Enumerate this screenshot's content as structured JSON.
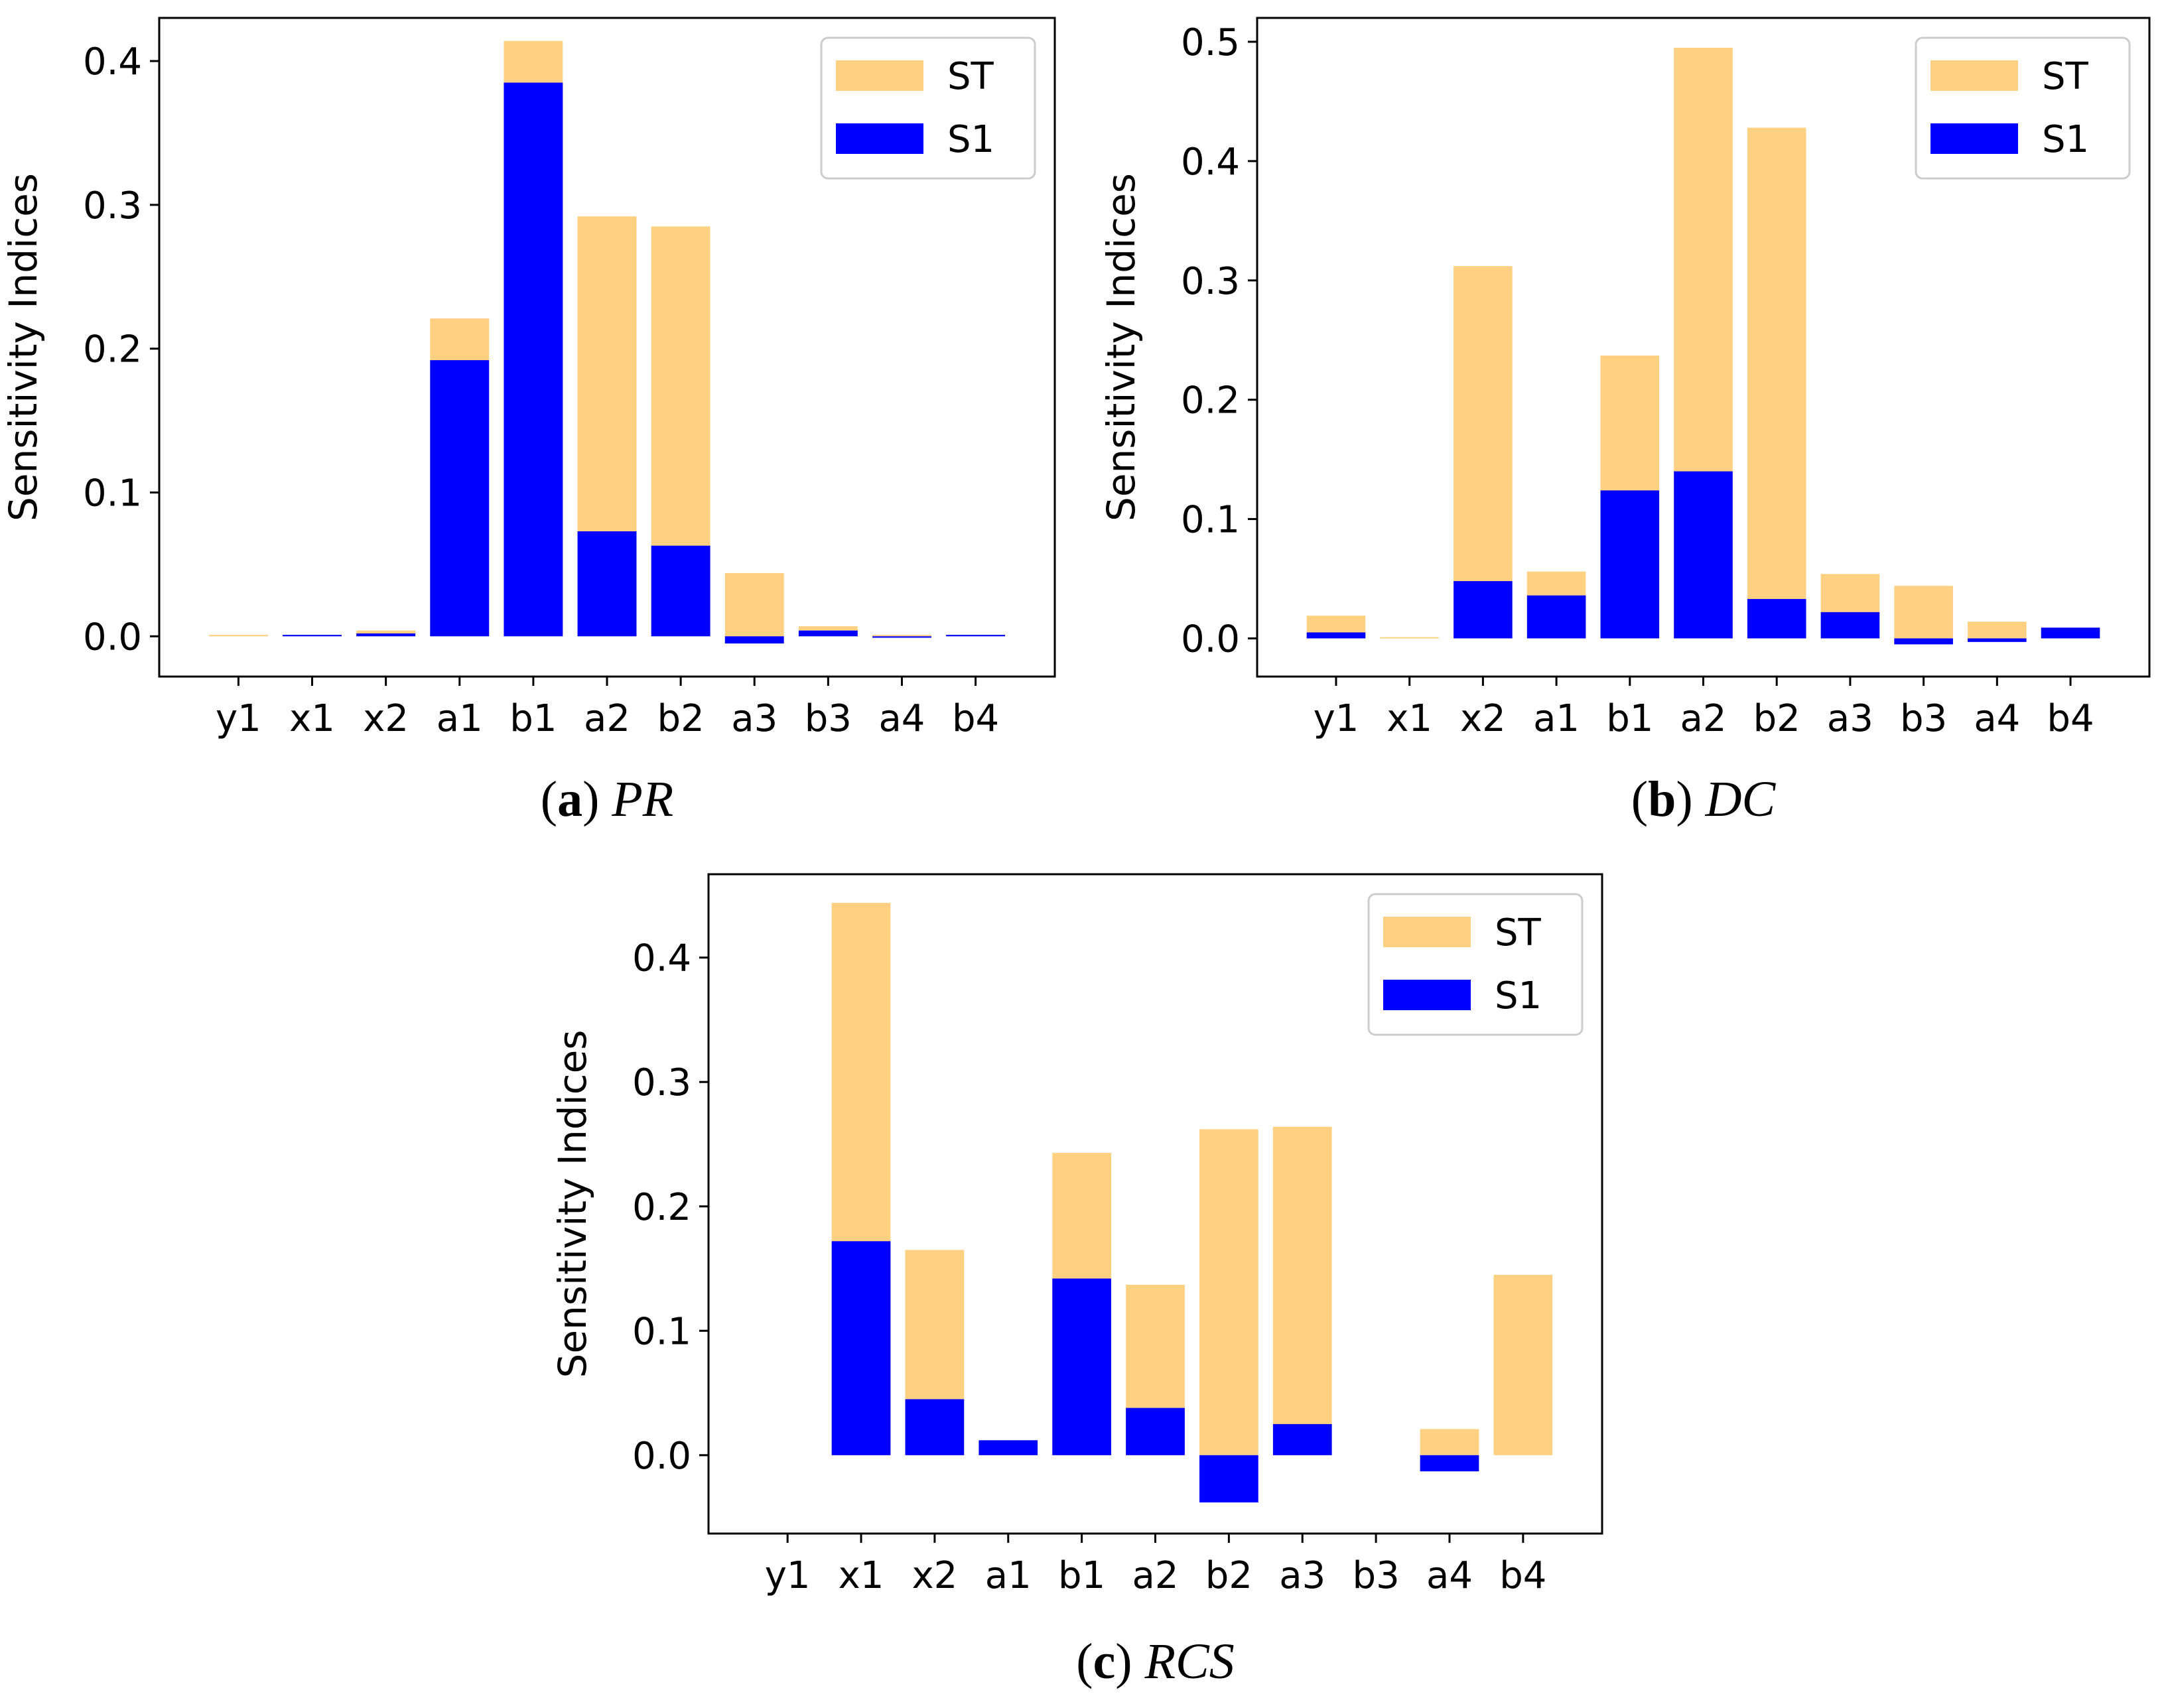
{
  "colors": {
    "ST": "#fed082",
    "S1": "#0000ff"
  },
  "chart_data": [
    {
      "type": "bar",
      "caption_letter": "a",
      "caption_name": "PR",
      "ylabel": "Sensitivity Indices",
      "categories": [
        "y1",
        "x1",
        "x2",
        "a1",
        "b1",
        "a2",
        "b2",
        "a3",
        "b3",
        "a4",
        "b4"
      ],
      "ylim": [
        -0.028,
        0.43
      ],
      "yticks": [
        0.0,
        0.1,
        0.2,
        0.3,
        0.4
      ],
      "ytick_labels": [
        "0.0",
        "0.1",
        "0.2",
        "0.3",
        "0.4"
      ],
      "grid": false,
      "legend_position": "top-right",
      "series": [
        {
          "name": "ST",
          "values": [
            0.001,
            0.001,
            0.004,
            0.221,
            0.414,
            0.292,
            0.285,
            0.044,
            0.007,
            0.001,
            0.001
          ]
        },
        {
          "name": "S1",
          "values": [
            0.0,
            0.001,
            0.002,
            0.192,
            0.385,
            0.073,
            0.063,
            -0.005,
            0.004,
            -0.001,
            0.001
          ]
        }
      ]
    },
    {
      "type": "bar",
      "caption_letter": "b",
      "caption_name": "DC",
      "ylabel": "Sensitivity Indices",
      "categories": [
        "y1",
        "x1",
        "x2",
        "a1",
        "b1",
        "a2",
        "b2",
        "a3",
        "b3",
        "a4",
        "b4"
      ],
      "ylim": [
        -0.032,
        0.52
      ],
      "yticks": [
        0.0,
        0.1,
        0.2,
        0.3,
        0.4,
        0.5
      ],
      "ytick_labels": [
        "0.0",
        "0.1",
        "0.2",
        "0.3",
        "0.4",
        "0.5"
      ],
      "grid": false,
      "legend_position": "top-right",
      "series": [
        {
          "name": "ST",
          "values": [
            0.019,
            0.001,
            0.312,
            0.056,
            0.237,
            0.495,
            0.428,
            0.054,
            0.044,
            0.014,
            0.009
          ]
        },
        {
          "name": "S1",
          "values": [
            0.005,
            0.0,
            0.048,
            0.036,
            0.124,
            0.14,
            0.033,
            0.022,
            -0.005,
            -0.003,
            0.009
          ]
        }
      ]
    },
    {
      "type": "bar",
      "caption_letter": "c",
      "caption_name": "RCS",
      "ylabel": "Sensitivity Indices",
      "categories": [
        "y1",
        "x1",
        "x2",
        "a1",
        "b1",
        "a2",
        "b2",
        "a3",
        "b3",
        "a4",
        "b4"
      ],
      "ylim": [
        -0.063,
        0.467
      ],
      "yticks": [
        0.0,
        0.1,
        0.2,
        0.3,
        0.4
      ],
      "ytick_labels": [
        "0.0",
        "0.1",
        "0.2",
        "0.3",
        "0.4"
      ],
      "grid": false,
      "legend_position": "top-right",
      "series": [
        {
          "name": "ST",
          "values": [
            0.0,
            0.444,
            0.165,
            0.0,
            0.243,
            0.137,
            0.262,
            0.264,
            0.0,
            0.021,
            0.145
          ]
        },
        {
          "name": "S1",
          "values": [
            0.0,
            0.172,
            0.045,
            0.012,
            0.142,
            0.038,
            -0.038,
            0.025,
            0.0,
            -0.013,
            0.0
          ]
        }
      ]
    }
  ]
}
